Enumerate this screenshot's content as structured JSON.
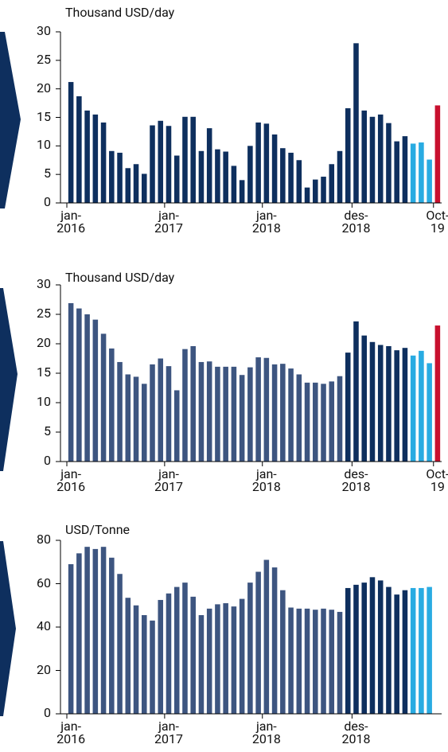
{
  "chart_data": [
    {
      "type": "bar",
      "ylabel": "Thousand USD/day",
      "categories": [
        "jan-\n2016",
        null,
        null,
        null,
        null,
        null,
        null,
        null,
        null,
        null,
        null,
        null,
        "jan-\n2017",
        null,
        null,
        null,
        null,
        null,
        null,
        null,
        null,
        null,
        null,
        null,
        "jan-\n2018",
        null,
        null,
        null,
        null,
        null,
        null,
        null,
        null,
        null,
        null,
        "des-\n2018",
        null,
        null,
        null,
        null,
        null,
        null,
        null,
        null,
        null,
        "Oct-\n19"
      ],
      "values": [
        21.2,
        18.7,
        16.2,
        15.5,
        14.1,
        9.1,
        8.8,
        6.1,
        6.8,
        5.1,
        13.6,
        14.4,
        13.5,
        8.3,
        15.1,
        15.1,
        9.1,
        13.1,
        9.4,
        9.0,
        6.5,
        4.0,
        10.0,
        14.1,
        13.9,
        12.0,
        9.6,
        8.8,
        7.5,
        2.7,
        4.1,
        4.6,
        6.8,
        9.1,
        16.6,
        28.0,
        16.2,
        15.1,
        15.5,
        14.0,
        10.8,
        11.7,
        10.4,
        10.6,
        7.6,
        17.1
      ],
      "colors": [
        "#0e2f5e",
        "#0e2f5e",
        "#0e2f5e",
        "#0e2f5e",
        "#0e2f5e",
        "#0e2f5e",
        "#0e2f5e",
        "#0e2f5e",
        "#0e2f5e",
        "#0e2f5e",
        "#0e2f5e",
        "#0e2f5e",
        "#0e2f5e",
        "#0e2f5e",
        "#0e2f5e",
        "#0e2f5e",
        "#0e2f5e",
        "#0e2f5e",
        "#0e2f5e",
        "#0e2f5e",
        "#0e2f5e",
        "#0e2f5e",
        "#0e2f5e",
        "#0e2f5e",
        "#0e2f5e",
        "#0e2f5e",
        "#0e2f5e",
        "#0e2f5e",
        "#0e2f5e",
        "#0e2f5e",
        "#0e2f5e",
        "#0e2f5e",
        "#0e2f5e",
        "#0e2f5e",
        "#0e2f5e",
        "#0e2f5e",
        "#0e2f5e",
        "#0e2f5e",
        "#0e2f5e",
        "#0e2f5e",
        "#0e2f5e",
        "#0e2f5e",
        "#29abe2",
        "#29abe2",
        "#29abe2",
        "#c8102e"
      ],
      "ylim": [
        0,
        30
      ],
      "yticks": [
        0,
        5,
        10,
        15,
        20,
        25,
        30
      ]
    },
    {
      "type": "bar",
      "ylabel": "Thousand USD/day",
      "categories": [
        "jan-\n2016",
        null,
        null,
        null,
        null,
        null,
        null,
        null,
        null,
        null,
        null,
        null,
        "jan-\n2017",
        null,
        null,
        null,
        null,
        null,
        null,
        null,
        null,
        null,
        null,
        null,
        "jan-\n2018",
        null,
        null,
        null,
        null,
        null,
        null,
        null,
        null,
        null,
        null,
        "des-\n2018",
        null,
        null,
        null,
        null,
        null,
        null,
        null,
        null,
        null,
        "Oct-\n19"
      ],
      "values": [
        26.9,
        26.0,
        25.0,
        24.1,
        21.7,
        19.2,
        16.9,
        14.8,
        14.4,
        13.2,
        16.5,
        17.5,
        16.2,
        12.1,
        19.1,
        19.6,
        16.9,
        17.0,
        16.1,
        16.1,
        16.1,
        14.7,
        16.0,
        17.7,
        17.6,
        16.5,
        16.6,
        15.8,
        14.8,
        13.4,
        13.4,
        13.2,
        13.6,
        14.5,
        18.5,
        23.8,
        21.4,
        20.3,
        19.8,
        19.6,
        18.9,
        19.3,
        18.0,
        18.8,
        16.7,
        23.1
      ],
      "colors": [
        "#3d5580",
        "#3d5580",
        "#3d5580",
        "#3d5580",
        "#3d5580",
        "#3d5580",
        "#3d5580",
        "#3d5580",
        "#3d5580",
        "#3d5580",
        "#3d5580",
        "#3d5580",
        "#3d5580",
        "#3d5580",
        "#3d5580",
        "#3d5580",
        "#3d5580",
        "#3d5580",
        "#3d5580",
        "#3d5580",
        "#3d5580",
        "#3d5580",
        "#3d5580",
        "#3d5580",
        "#3d5580",
        "#3d5580",
        "#3d5580",
        "#3d5580",
        "#3d5580",
        "#3d5580",
        "#3d5580",
        "#3d5580",
        "#3d5580",
        "#3d5580",
        "#0e2f5e",
        "#0e2f5e",
        "#0e2f5e",
        "#0e2f5e",
        "#0e2f5e",
        "#0e2f5e",
        "#0e2f5e",
        "#0e2f5e",
        "#29abe2",
        "#29abe2",
        "#29abe2",
        "#c8102e"
      ],
      "ylim": [
        0,
        30
      ],
      "yticks": [
        0,
        5,
        10,
        15,
        20,
        25,
        30
      ]
    },
    {
      "type": "bar",
      "ylabel": "USD/Tonne",
      "categories": [
        "jan-\n2016",
        null,
        null,
        null,
        null,
        null,
        null,
        null,
        null,
        null,
        null,
        null,
        "jan-\n2017",
        null,
        null,
        null,
        null,
        null,
        null,
        null,
        null,
        null,
        null,
        null,
        "jan-\n2018",
        null,
        null,
        null,
        null,
        null,
        null,
        null,
        null,
        null,
        null,
        "des-\n2018",
        null,
        null,
        null,
        null,
        null,
        null,
        null,
        null,
        null
      ],
      "values": [
        69,
        74,
        77,
        76,
        77,
        72,
        64.5,
        53.5,
        50,
        45.5,
        43,
        52.5,
        55.5,
        58.5,
        60.5,
        54,
        45.5,
        48.5,
        50.5,
        51,
        49.5,
        53,
        60.5,
        65.5,
        71,
        67.5,
        57,
        49,
        48.5,
        48.5,
        48,
        48.5,
        48,
        47,
        58,
        59.5,
        60.5,
        63,
        61.5,
        58.5,
        55,
        57,
        58,
        58,
        58.5
      ],
      "colors": [
        "#3d5580",
        "#3d5580",
        "#3d5580",
        "#3d5580",
        "#3d5580",
        "#3d5580",
        "#3d5580",
        "#3d5580",
        "#3d5580",
        "#3d5580",
        "#3d5580",
        "#3d5580",
        "#3d5580",
        "#3d5580",
        "#3d5580",
        "#3d5580",
        "#3d5580",
        "#3d5580",
        "#3d5580",
        "#3d5580",
        "#3d5580",
        "#3d5580",
        "#3d5580",
        "#3d5580",
        "#3d5580",
        "#3d5580",
        "#3d5580",
        "#3d5580",
        "#3d5580",
        "#3d5580",
        "#3d5580",
        "#3d5580",
        "#3d5580",
        "#3d5580",
        "#0e2f5e",
        "#0e2f5e",
        "#0e2f5e",
        "#0e2f5e",
        "#0e2f5e",
        "#0e2f5e",
        "#0e2f5e",
        "#0e2f5e",
        "#29abe2",
        "#29abe2",
        "#29abe2"
      ],
      "ylim": [
        0,
        80
      ],
      "yticks": [
        0,
        20,
        40,
        60,
        80
      ]
    }
  ]
}
